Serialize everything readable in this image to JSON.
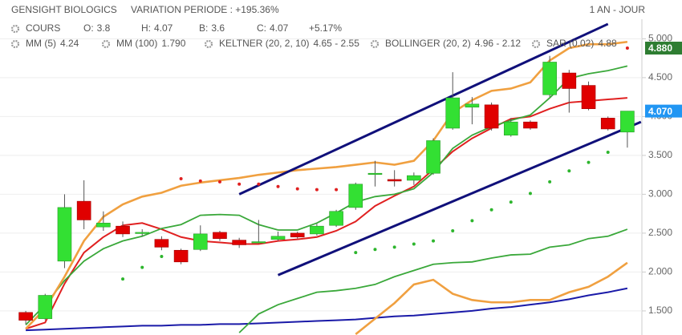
{
  "chart_data": {
    "type": "candlestick",
    "title": "GENSIGHT BIOLOGICS",
    "subtitle": "VARIATION PERIODE : +195.36%",
    "period": "1 AN - JOUR",
    "quote": {
      "name": "COURS",
      "fields": [
        {
          "label": "O:",
          "value": 3.8
        },
        {
          "label": "H:",
          "value": 4.07
        },
        {
          "label": "B:",
          "value": 3.6
        },
        {
          "label": "C:",
          "value": 4.07
        }
      ],
      "change": "+5.17%"
    },
    "ylim": [
      1.19,
      5.21
    ],
    "yticks": [
      {
        "value": 1.5,
        "label": "1.500"
      },
      {
        "value": 2.0,
        "label": "2.000"
      },
      {
        "value": 2.5,
        "label": "2.500"
      },
      {
        "value": 3.0,
        "label": "3.000"
      },
      {
        "value": 3.5,
        "label": "3.500"
      },
      {
        "value": 4.0,
        "label": "4.000"
      },
      {
        "value": 4.5,
        "label": "4.500"
      },
      {
        "value": 5.0,
        "label": "5.000"
      }
    ],
    "grid": true,
    "up_color": "#33e033",
    "down_color": "#e00000",
    "open": [
      1.48,
      1.4,
      2.14,
      2.91,
      2.58,
      2.59,
      2.5,
      2.42,
      2.28,
      2.29,
      2.51,
      2.41,
      2.38,
      2.42,
      2.5,
      2.49,
      2.6,
      2.83,
      3.26,
      3.19,
      3.18,
      3.27,
      3.85,
      4.12,
      4.15,
      3.76,
      3.93,
      4.28,
      4.56,
      4.4,
      3.98,
      3.8
    ],
    "high": [
      1.5,
      1.72,
      3.0,
      3.18,
      2.78,
      2.65,
      2.55,
      2.46,
      2.3,
      2.6,
      2.53,
      2.44,
      2.67,
      2.52,
      2.52,
      2.62,
      2.8,
      3.15,
      3.43,
      3.31,
      3.28,
      3.72,
      4.57,
      4.25,
      4.18,
      3.98,
      3.95,
      4.78,
      4.6,
      4.45,
      4.0,
      4.07
    ],
    "low": [
      1.33,
      1.38,
      2.05,
      2.55,
      2.53,
      2.45,
      2.46,
      2.28,
      2.1,
      2.27,
      2.4,
      2.31,
      2.37,
      2.4,
      2.43,
      2.47,
      2.58,
      2.8,
      3.1,
      3.1,
      3.12,
      3.25,
      3.83,
      3.9,
      3.82,
      3.74,
      3.83,
      4.25,
      4.05,
      4.08,
      3.82,
      3.6
    ],
    "close": [
      1.38,
      1.7,
      2.83,
      2.67,
      2.63,
      2.49,
      2.51,
      2.32,
      2.13,
      2.49,
      2.43,
      2.35,
      2.39,
      2.46,
      2.45,
      2.59,
      2.78,
      3.13,
      3.27,
      3.17,
      3.24,
      3.69,
      4.24,
      4.16,
      3.85,
      3.93,
      3.85,
      4.7,
      4.36,
      4.1,
      3.84,
      4.07
    ],
    "indicators": [
      {
        "name": "MM (5)",
        "label": "4.24",
        "color": "#e02020",
        "values": [
          1.27,
          1.35,
          1.85,
          2.25,
          2.45,
          2.6,
          2.63,
          2.55,
          2.45,
          2.4,
          2.38,
          2.36,
          2.36,
          2.4,
          2.42,
          2.45,
          2.53,
          2.65,
          2.85,
          2.98,
          3.1,
          3.32,
          3.55,
          3.72,
          3.85,
          3.97,
          4.0,
          4.1,
          4.18,
          4.2,
          4.22,
          4.24
        ]
      },
      {
        "name": "MM (100)",
        "label": "1.790",
        "color": "#1a1aa8",
        "values": [
          1.25,
          1.26,
          1.27,
          1.28,
          1.29,
          1.3,
          1.31,
          1.31,
          1.32,
          1.32,
          1.33,
          1.33,
          1.34,
          1.35,
          1.36,
          1.37,
          1.38,
          1.39,
          1.41,
          1.43,
          1.44,
          1.46,
          1.48,
          1.5,
          1.53,
          1.55,
          1.58,
          1.61,
          1.65,
          1.7,
          1.74,
          1.79
        ]
      },
      {
        "name": "KELTNER (20, 2, 10)",
        "label": "4.65 - 2.55",
        "color": "#3aa83a",
        "upper": [
          1.32,
          1.58,
          1.89,
          2.14,
          2.3,
          2.4,
          2.46,
          2.56,
          2.61,
          2.73,
          2.74,
          2.73,
          2.61,
          2.54,
          2.54,
          2.63,
          2.76,
          2.9,
          2.97,
          3.0,
          3.07,
          3.28,
          3.59,
          3.76,
          3.87,
          3.95,
          4.02,
          4.24,
          4.49,
          4.55,
          4.59,
          4.65
        ],
        "lower": [
          null,
          null,
          null,
          null,
          null,
          null,
          null,
          null,
          null,
          null,
          null,
          1.22,
          1.46,
          1.58,
          1.66,
          1.74,
          1.76,
          1.79,
          1.84,
          1.94,
          2.02,
          2.1,
          2.12,
          2.13,
          2.18,
          2.22,
          2.23,
          2.32,
          2.35,
          2.43,
          2.46,
          2.55
        ]
      },
      {
        "name": "BOLLINGER (20, 2)",
        "label": "4.96 - 2.12",
        "color": "#f0a040",
        "upper": [
          1.27,
          1.53,
          1.94,
          2.4,
          2.71,
          2.87,
          2.97,
          3.02,
          3.11,
          3.15,
          3.18,
          3.21,
          3.25,
          3.28,
          3.31,
          3.33,
          3.35,
          3.38,
          3.41,
          3.38,
          3.43,
          3.69,
          4.05,
          4.21,
          4.33,
          4.36,
          4.44,
          4.72,
          4.88,
          4.93,
          4.93,
          4.96
        ],
        "lower": [
          null,
          null,
          null,
          null,
          null,
          null,
          null,
          null,
          null,
          null,
          null,
          null,
          null,
          null,
          null,
          null,
          null,
          1.2,
          1.4,
          1.6,
          1.84,
          1.9,
          1.72,
          1.64,
          1.61,
          1.61,
          1.64,
          1.64,
          1.74,
          1.81,
          1.94,
          2.12
        ]
      },
      {
        "name": "SAR (0.02)",
        "label": "4.88",
        "color": "#e02020",
        "below_color": "#2db52d",
        "values": [
          null,
          null,
          null,
          null,
          null,
          1.91,
          2.06,
          2.2,
          3.2,
          3.17,
          3.16,
          3.13,
          3.13,
          3.1,
          3.07,
          3.06,
          3.06,
          2.25,
          2.29,
          2.32,
          2.36,
          2.4,
          2.53,
          2.66,
          2.8,
          2.9,
          3.01,
          3.16,
          3.3,
          3.41,
          3.54,
          4.88
        ]
      }
    ],
    "trendlines": [
      {
        "color": "#10107a",
        "start": [
          11,
          3.0
        ],
        "end": [
          30,
          5.19
        ]
      },
      {
        "color": "#10107a",
        "start": [
          13,
          1.96
        ],
        "end": [
          31.7,
          3.93
        ]
      }
    ],
    "price_labels": [
      {
        "value": 4.88,
        "label": "4.880",
        "color": "#2e7d32"
      },
      {
        "value": 4.07,
        "label": "4.070",
        "color": "#2196f3"
      }
    ]
  }
}
